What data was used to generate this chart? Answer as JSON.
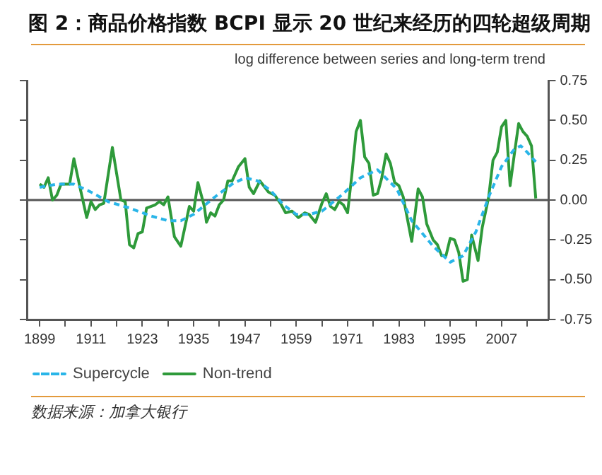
{
  "chart_data": {
    "type": "line",
    "title": "图 2：商品价格指数 BCPI 显示 20 世纪来经历的四轮超级周期",
    "ylabel": "log difference between series and long-term trend",
    "annotations": [
      "数据来源：加拿大银行"
    ],
    "xlim": [
      1896,
      2018
    ],
    "xticks": [
      1899,
      {
        "value": 1905,
        "label": null
      },
      1911,
      {
        "value": 1917,
        "label": null
      },
      1923,
      {
        "value": 1929,
        "label": null
      },
      1935,
      {
        "value": 1941,
        "label": null
      },
      1947,
      {
        "value": 1953,
        "label": null
      },
      1959,
      {
        "value": 1965,
        "label": null
      },
      1971,
      {
        "value": 1977,
        "label": null
      },
      1983,
      {
        "value": 1989,
        "label": null
      },
      1995,
      {
        "value": 2001,
        "label": null
      },
      2007,
      {
        "value": 2013,
        "label": null
      }
    ],
    "ylim": [
      -0.75,
      0.75
    ],
    "yticks": [
      {
        "value": -0.75,
        "label": "-0.75"
      },
      {
        "value": -0.5,
        "label": "-0.50"
      },
      {
        "value": -0.25,
        "label": "-0.25"
      },
      {
        "value": 0,
        "label": "0.00"
      },
      {
        "value": 0.25,
        "label": "0.25"
      },
      {
        "value": 0.5,
        "label": "0.50"
      },
      0.75
    ],
    "ref_lines": [
      {
        "axis": "y",
        "value": 0,
        "color": "#555555"
      }
    ],
    "grid": false,
    "legend": "bottom left",
    "marker": "none",
    "series": [
      {
        "name": "Supercycle",
        "color": "#29b5e8",
        "line_style": "dashed",
        "x": [
          1899,
          1903,
          1907,
          1911,
          1915,
          1920,
          1925,
          1929,
          1932,
          1935,
          1940,
          1944,
          1947,
          1950,
          1953,
          1956,
          1959,
          1962,
          1965,
          1970,
          1974,
          1978,
          1982.5,
          1986,
          1991,
          1995,
          1998,
          2001,
          2004,
          2007,
          2010,
          2011.5,
          2013,
          2015
        ],
        "values": [
          0.08,
          0.1,
          0.1,
          0.05,
          -0.01,
          -0.05,
          -0.1,
          -0.13,
          -0.13,
          -0.09,
          0.02,
          0.1,
          0.14,
          0.12,
          0.06,
          -0.03,
          -0.09,
          -0.09,
          -0.07,
          0.04,
          0.14,
          0.19,
          0.07,
          -0.13,
          -0.29,
          -0.39,
          -0.35,
          -0.2,
          0.02,
          0.21,
          0.32,
          0.34,
          0.3,
          0.24
        ]
      },
      {
        "name": "Non-trend",
        "color": "#2e9a3a",
        "line_style": "solid",
        "x": [
          1899,
          1900,
          1901,
          1902,
          1903,
          1904,
          1906,
          1907,
          1908.5,
          1910,
          1911,
          1912,
          1913,
          1914,
          1916,
          1918,
          1919,
          1920,
          1921,
          1922,
          1923,
          1924,
          1926,
          1927,
          1928,
          1929,
          1930.5,
          1932,
          1934,
          1935,
          1936,
          1937.5,
          1938,
          1939,
          1940,
          1941,
          1942,
          1943,
          1944,
          1945.5,
          1947,
          1948,
          1949,
          1950.5,
          1952.5,
          1954,
          1955.5,
          1956.5,
          1958,
          1959.5,
          1961,
          1962,
          1963.5,
          1965,
          1966,
          1967,
          1968,
          1969,
          1970,
          1971,
          1972,
          1973,
          1974,
          1975,
          1976,
          1977,
          1978,
          1979,
          1980,
          1981,
          1982,
          1983,
          1984,
          1986,
          1987.5,
          1988.5,
          1989.5,
          1991,
          1992,
          1993,
          1994,
          1995,
          1996,
          1997,
          1998,
          1999,
          2000,
          2001.5,
          2002.5,
          2004,
          2005,
          2006,
          2007,
          2008,
          2009,
          2010,
          2011,
          2012,
          2013,
          2014,
          2015
        ],
        "values": [
          0.1,
          0.08,
          0.14,
          0.0,
          0.03,
          0.1,
          0.1,
          0.26,
          0.07,
          -0.11,
          -0.01,
          -0.06,
          -0.03,
          -0.02,
          0.33,
          0.0,
          -0.01,
          -0.28,
          -0.3,
          -0.21,
          -0.2,
          -0.05,
          -0.03,
          -0.01,
          -0.03,
          0.02,
          -0.23,
          -0.29,
          -0.04,
          -0.07,
          0.11,
          -0.04,
          -0.14,
          -0.08,
          -0.1,
          -0.03,
          0.0,
          0.12,
          0.12,
          0.21,
          0.26,
          0.08,
          0.04,
          0.12,
          0.05,
          0.03,
          -0.03,
          -0.08,
          -0.07,
          -0.11,
          -0.08,
          -0.09,
          -0.14,
          -0.02,
          0.04,
          -0.04,
          -0.06,
          -0.01,
          -0.03,
          -0.08,
          0.16,
          0.43,
          0.5,
          0.27,
          0.23,
          0.03,
          0.04,
          0.14,
          0.29,
          0.23,
          0.11,
          0.09,
          0.02,
          -0.26,
          0.07,
          0.02,
          -0.15,
          -0.25,
          -0.28,
          -0.35,
          -0.35,
          -0.24,
          -0.25,
          -0.33,
          -0.51,
          -0.5,
          -0.22,
          -0.38,
          -0.17,
          0.02,
          0.25,
          0.3,
          0.46,
          0.5,
          0.09,
          0.29,
          0.48,
          0.43,
          0.4,
          0.34,
          0.01
        ]
      }
    ]
  }
}
